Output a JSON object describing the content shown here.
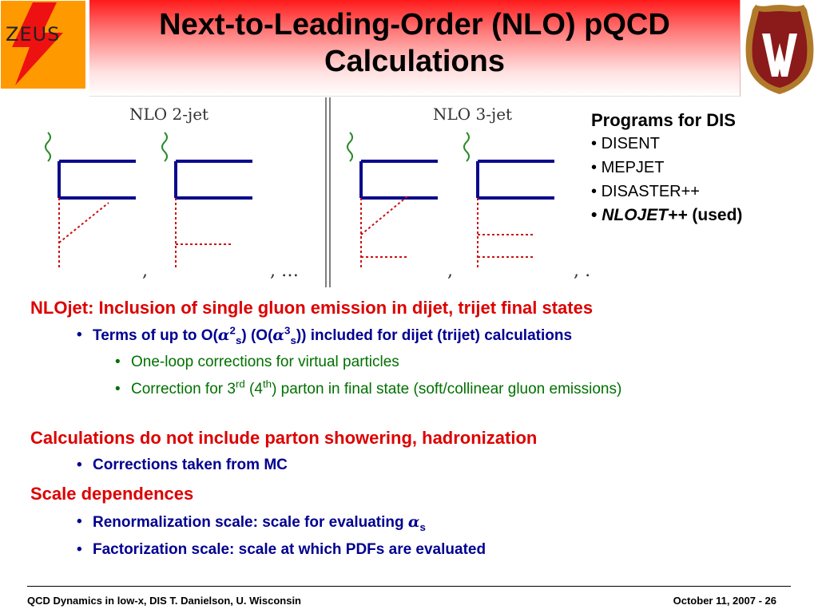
{
  "header": {
    "title_line1": "Next-to-Leading-Order (NLO) pQCD",
    "title_line2": "Calculations",
    "zeus_logo_text": "ZEUS"
  },
  "diagram": {
    "label_2jet": "NLO 2-jet",
    "label_3jet": "NLO 3-jet",
    "separator_comma": ",",
    "ellipsis": ", …"
  },
  "programs": {
    "heading": "Programs for DIS",
    "items": [
      "DISENT",
      "MEPJET",
      "DISASTER++"
    ],
    "emph_item": "NLOJET++",
    "emph_suffix": "(used)",
    "bullet": "•"
  },
  "content": {
    "point1": "NLOjet: Inclusion of single gluon emission in dijet, trijet final states",
    "point1_sub": {
      "pre": "Terms of up to O(",
      "alpha": "α",
      "sup1": "2",
      "sub1": "s",
      "mid": ") (O(",
      "sup2": "3",
      "sub2": "s",
      "post": ")) included for dijet (trijet) calculations"
    },
    "point1_subsub1": "One-loop corrections for virtual particles",
    "point1_subsub2": {
      "pre": "Correction for 3",
      "sup1": "rd",
      "mid": " (4",
      "sup2": "th",
      "post": ") parton in final state (soft/collinear gluon emissions)"
    },
    "point2": "Calculations do not include parton showering, hadronization",
    "point2_sub": "Corrections taken from MC",
    "point3": "Scale dependences",
    "point3_sub1_pre": "Renormalization scale: scale for evaluating ",
    "point3_sub1_alpha": "α",
    "point3_sub1_sub": "s",
    "point3_sub2": "Factorization scale: scale at which PDFs are evaluated",
    "bullet": "•"
  },
  "footer": {
    "left": "QCD Dynamics in low-x, DIS T. Danielson, U. Wisconsin",
    "right": "October 11, 2007 - 26"
  },
  "colors": {
    "heading_red": "#dd0000",
    "sub_blue": "#000090",
    "subsub_green": "#007000",
    "quark_line": "#0a0a8c",
    "gluon": "#cc1111",
    "photon": "#2a8a2a",
    "crest_red": "#8b1a1a"
  }
}
